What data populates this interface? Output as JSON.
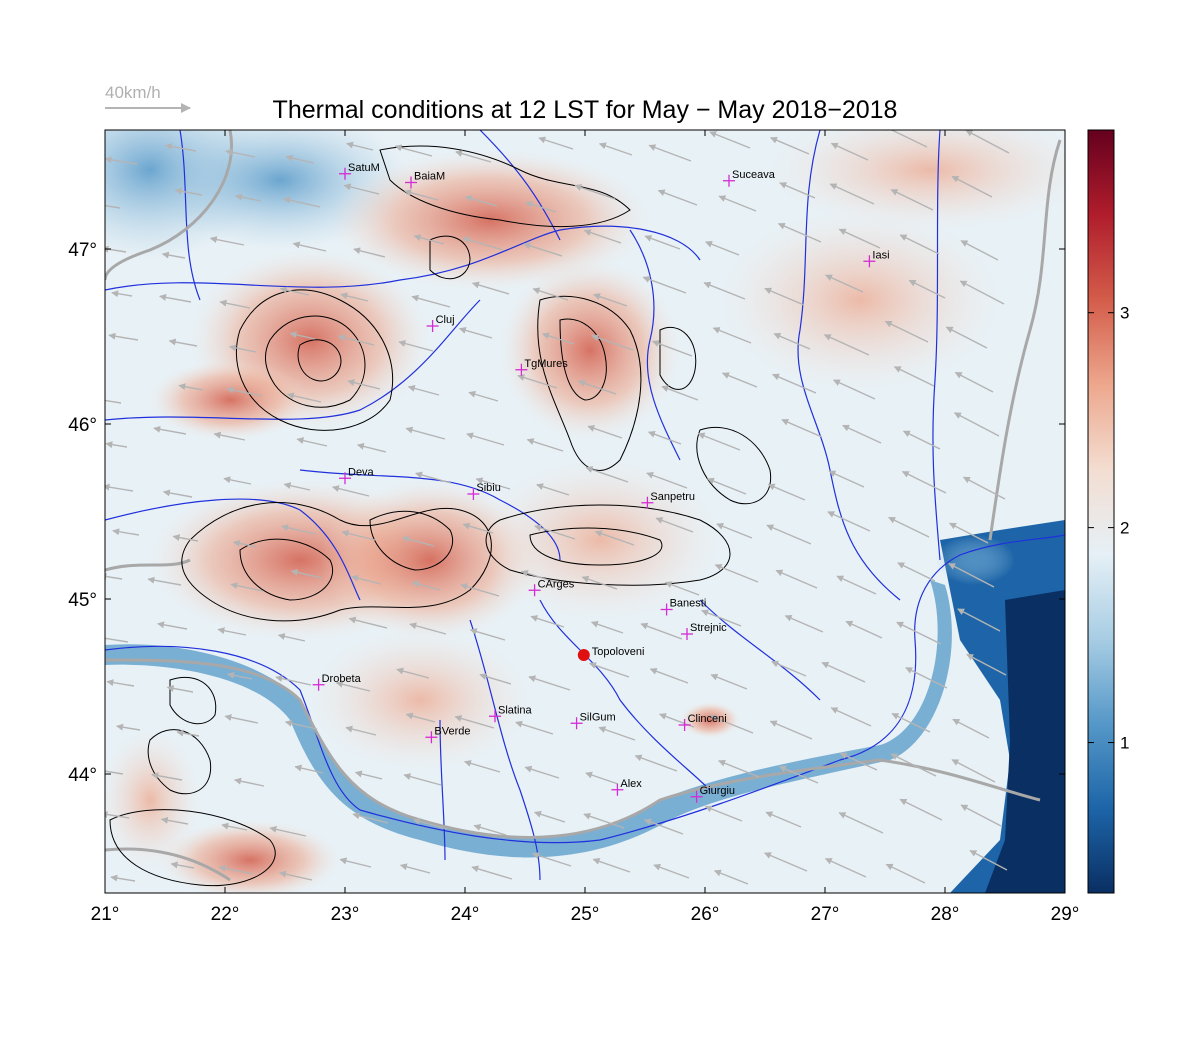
{
  "title": "Thermal conditions at 12 LST for May − May  2018−2018",
  "wind_reference": {
    "label": "40km/h",
    "speed_kmh": 40
  },
  "map": {
    "lon_range": [
      21,
      29
    ],
    "lat_range": [
      43.32,
      47.68
    ],
    "lon_ticks": [
      {
        "value": 21,
        "label": "21°"
      },
      {
        "value": 22,
        "label": "22°"
      },
      {
        "value": 23,
        "label": "23°"
      },
      {
        "value": 24,
        "label": "24°"
      },
      {
        "value": 25,
        "label": "25°"
      },
      {
        "value": 26,
        "label": "26°"
      },
      {
        "value": 27,
        "label": "27°"
      },
      {
        "value": 28,
        "label": "28°"
      },
      {
        "value": 29,
        "label": "29°"
      }
    ],
    "lat_ticks": [
      {
        "value": 44,
        "label": "44°"
      },
      {
        "value": 45,
        "label": "45°"
      },
      {
        "value": 46,
        "label": "46°"
      },
      {
        "value": 47,
        "label": "47°"
      }
    ],
    "stations": [
      {
        "name": "SatuM",
        "lon": 23.0,
        "lat": 47.43
      },
      {
        "name": "BaiaM",
        "lon": 23.55,
        "lat": 47.38
      },
      {
        "name": "Suceava",
        "lon": 26.2,
        "lat": 47.39
      },
      {
        "name": "Iasi",
        "lon": 27.37,
        "lat": 46.93
      },
      {
        "name": "Cluj",
        "lon": 23.73,
        "lat": 46.56
      },
      {
        "name": "TgMures",
        "lon": 24.47,
        "lat": 46.31
      },
      {
        "name": "Deva",
        "lon": 23.0,
        "lat": 45.69
      },
      {
        "name": "Sibiu",
        "lon": 24.07,
        "lat": 45.6
      },
      {
        "name": "Sanpetru",
        "lon": 25.52,
        "lat": 45.55
      },
      {
        "name": "CArges",
        "lon": 24.58,
        "lat": 45.05
      },
      {
        "name": "Banesti",
        "lon": 25.68,
        "lat": 44.94
      },
      {
        "name": "Strejnic",
        "lon": 25.85,
        "lat": 44.8
      },
      {
        "name": "Drobeta",
        "lon": 22.78,
        "lat": 44.51
      },
      {
        "name": "Slatina",
        "lon": 24.25,
        "lat": 44.33
      },
      {
        "name": "SilGum",
        "lon": 24.93,
        "lat": 44.29
      },
      {
        "name": "Clinceni",
        "lon": 25.83,
        "lat": 44.28
      },
      {
        "name": "BVerde",
        "lon": 23.72,
        "lat": 44.21
      },
      {
        "name": "Alex",
        "lon": 25.27,
        "lat": 43.91
      },
      {
        "name": "Giurgiu",
        "lon": 25.93,
        "lat": 43.87
      }
    ],
    "highlight": {
      "name": "Topoloveni",
      "lon": 24.99,
      "lat": 44.68
    }
  },
  "colorbar": {
    "min": 0.3,
    "max": 3.85,
    "ticks": [
      {
        "value": 1,
        "label": "1"
      },
      {
        "value": 2,
        "label": "2"
      },
      {
        "value": 3,
        "label": "3"
      }
    ],
    "colors": [
      "#0a2f63",
      "#1d65a8",
      "#5598c8",
      "#a8cde4",
      "#e6f0f6",
      "#f3ddd1",
      "#eda78d",
      "#d35c4a",
      "#b01d2c",
      "#65001e"
    ]
  },
  "colors": {
    "station_marker": "#d42bd4",
    "highlight_marker": "#e01010",
    "rivers": "#2030dd",
    "borders": "#a8a8a8",
    "wind_arrows": "#b4b4b4",
    "contours": "#000000"
  }
}
